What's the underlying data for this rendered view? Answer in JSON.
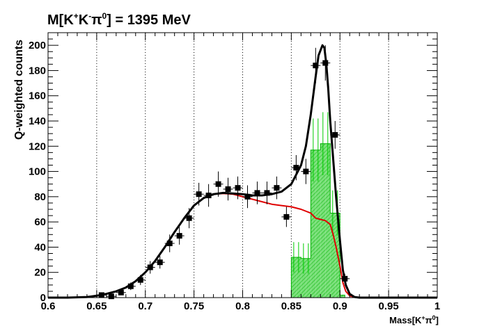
{
  "chart_data": {
    "type": "line",
    "title": {
      "main": "M[K",
      "sup1": "+",
      "mid1": "K",
      "sup2": "-",
      "mid2": "π",
      "sup3": "0",
      "tail": "] = 1395 MeV"
    },
    "xlabel": {
      "main": "Mass[K",
      "sup1": "+",
      "mid": "π",
      "sup2": "0",
      "tail": "]"
    },
    "ylabel": "Q-weighted counts",
    "xlim": [
      0.6,
      1.0
    ],
    "ylim": [
      0,
      210
    ],
    "xticks": [
      "0.6",
      "0.65",
      "0.7",
      "0.75",
      "0.8",
      "0.85",
      "0.9",
      "0.95",
      "1"
    ],
    "yticks": [
      "0",
      "20",
      "40",
      "60",
      "80",
      "100",
      "120",
      "140",
      "160",
      "180",
      "200"
    ],
    "grid": "vertical dotted at major x ticks",
    "colors": {
      "data": "#000000",
      "total_fit": "#000000",
      "background_fit": "#e00000",
      "signal_hist": "#00cc00",
      "signal_fill": "#66dd66"
    },
    "data_points": {
      "x": [
        0.655,
        0.665,
        0.675,
        0.685,
        0.695,
        0.705,
        0.715,
        0.725,
        0.735,
        0.745,
        0.755,
        0.765,
        0.775,
        0.785,
        0.795,
        0.805,
        0.815,
        0.825,
        0.835,
        0.845,
        0.855,
        0.865,
        0.875,
        0.885,
        0.895,
        0.905
      ],
      "y": [
        2,
        1,
        4,
        9,
        14,
        24,
        28,
        43,
        49,
        63,
        82,
        81,
        90,
        86,
        87,
        80,
        83,
        83,
        87,
        64,
        103,
        100,
        184,
        186,
        129,
        15
      ],
      "yerr": [
        2,
        1,
        2,
        3,
        4,
        5,
        5,
        7,
        7,
        8,
        9,
        9,
        10,
        9,
        9,
        9,
        9,
        9,
        9,
        8,
        10,
        10,
        14,
        14,
        11,
        4
      ],
      "xerr": 0.005
    },
    "series": [
      {
        "x": [
          0.6,
          0.62,
          0.64,
          0.65,
          0.66,
          0.67,
          0.68,
          0.69,
          0.7,
          0.71,
          0.72,
          0.73,
          0.74,
          0.75,
          0.76,
          0.77,
          0.78,
          0.79,
          0.8,
          0.81,
          0.82,
          0.83,
          0.84,
          0.85,
          0.86,
          0.865,
          0.87,
          0.875,
          0.878,
          0.882,
          0.884,
          0.886,
          0.888,
          0.89,
          0.893,
          0.896,
          0.9,
          0.903,
          0.906,
          0.91,
          0.915,
          0.92,
          0.95,
          1.0
        ],
        "y": [
          0,
          0,
          0.5,
          1.5,
          3,
          5,
          8,
          13,
          20,
          29,
          40,
          52,
          63,
          73,
          79,
          82,
          83,
          82.5,
          82,
          81,
          81,
          82,
          84,
          90,
          105,
          120,
          145,
          175,
          192,
          200,
          198,
          185,
          165,
          140,
          110,
          80,
          45,
          22,
          10,
          3,
          0.5,
          0,
          0,
          0
        ]
      },
      {
        "x": [
          0.6,
          0.62,
          0.64,
          0.65,
          0.66,
          0.67,
          0.68,
          0.69,
          0.7,
          0.71,
          0.72,
          0.73,
          0.74,
          0.75,
          0.76,
          0.77,
          0.78,
          0.79,
          0.8,
          0.81,
          0.82,
          0.83,
          0.84,
          0.85,
          0.86,
          0.87,
          0.875,
          0.88,
          0.885,
          0.89,
          0.893,
          0.896,
          0.9,
          0.903,
          0.906,
          0.91,
          0.915,
          0.92,
          0.95,
          1.0
        ],
        "y": [
          0,
          0,
          0.5,
          1.5,
          3,
          5,
          8,
          13,
          20,
          29,
          40,
          52,
          63,
          73,
          79,
          82,
          82.5,
          82,
          80,
          78,
          76,
          74,
          73,
          72,
          70,
          67,
          63,
          62,
          61,
          58,
          50,
          40,
          25,
          12,
          5,
          1.5,
          0.3,
          0,
          0,
          0
        ]
      }
    ],
    "histogram": {
      "edges": [
        0.85,
        0.855,
        0.86,
        0.865,
        0.87,
        0.875,
        0.88,
        0.885,
        0.89,
        0.895,
        0.9,
        0.905,
        0.91
      ],
      "values": [
        32,
        32,
        31,
        31,
        117,
        117,
        122,
        122,
        67,
        67,
        2,
        0
      ],
      "errors": [
        12,
        12,
        12,
        12,
        25,
        25,
        25,
        25,
        18,
        18,
        0,
        0
      ]
    }
  }
}
